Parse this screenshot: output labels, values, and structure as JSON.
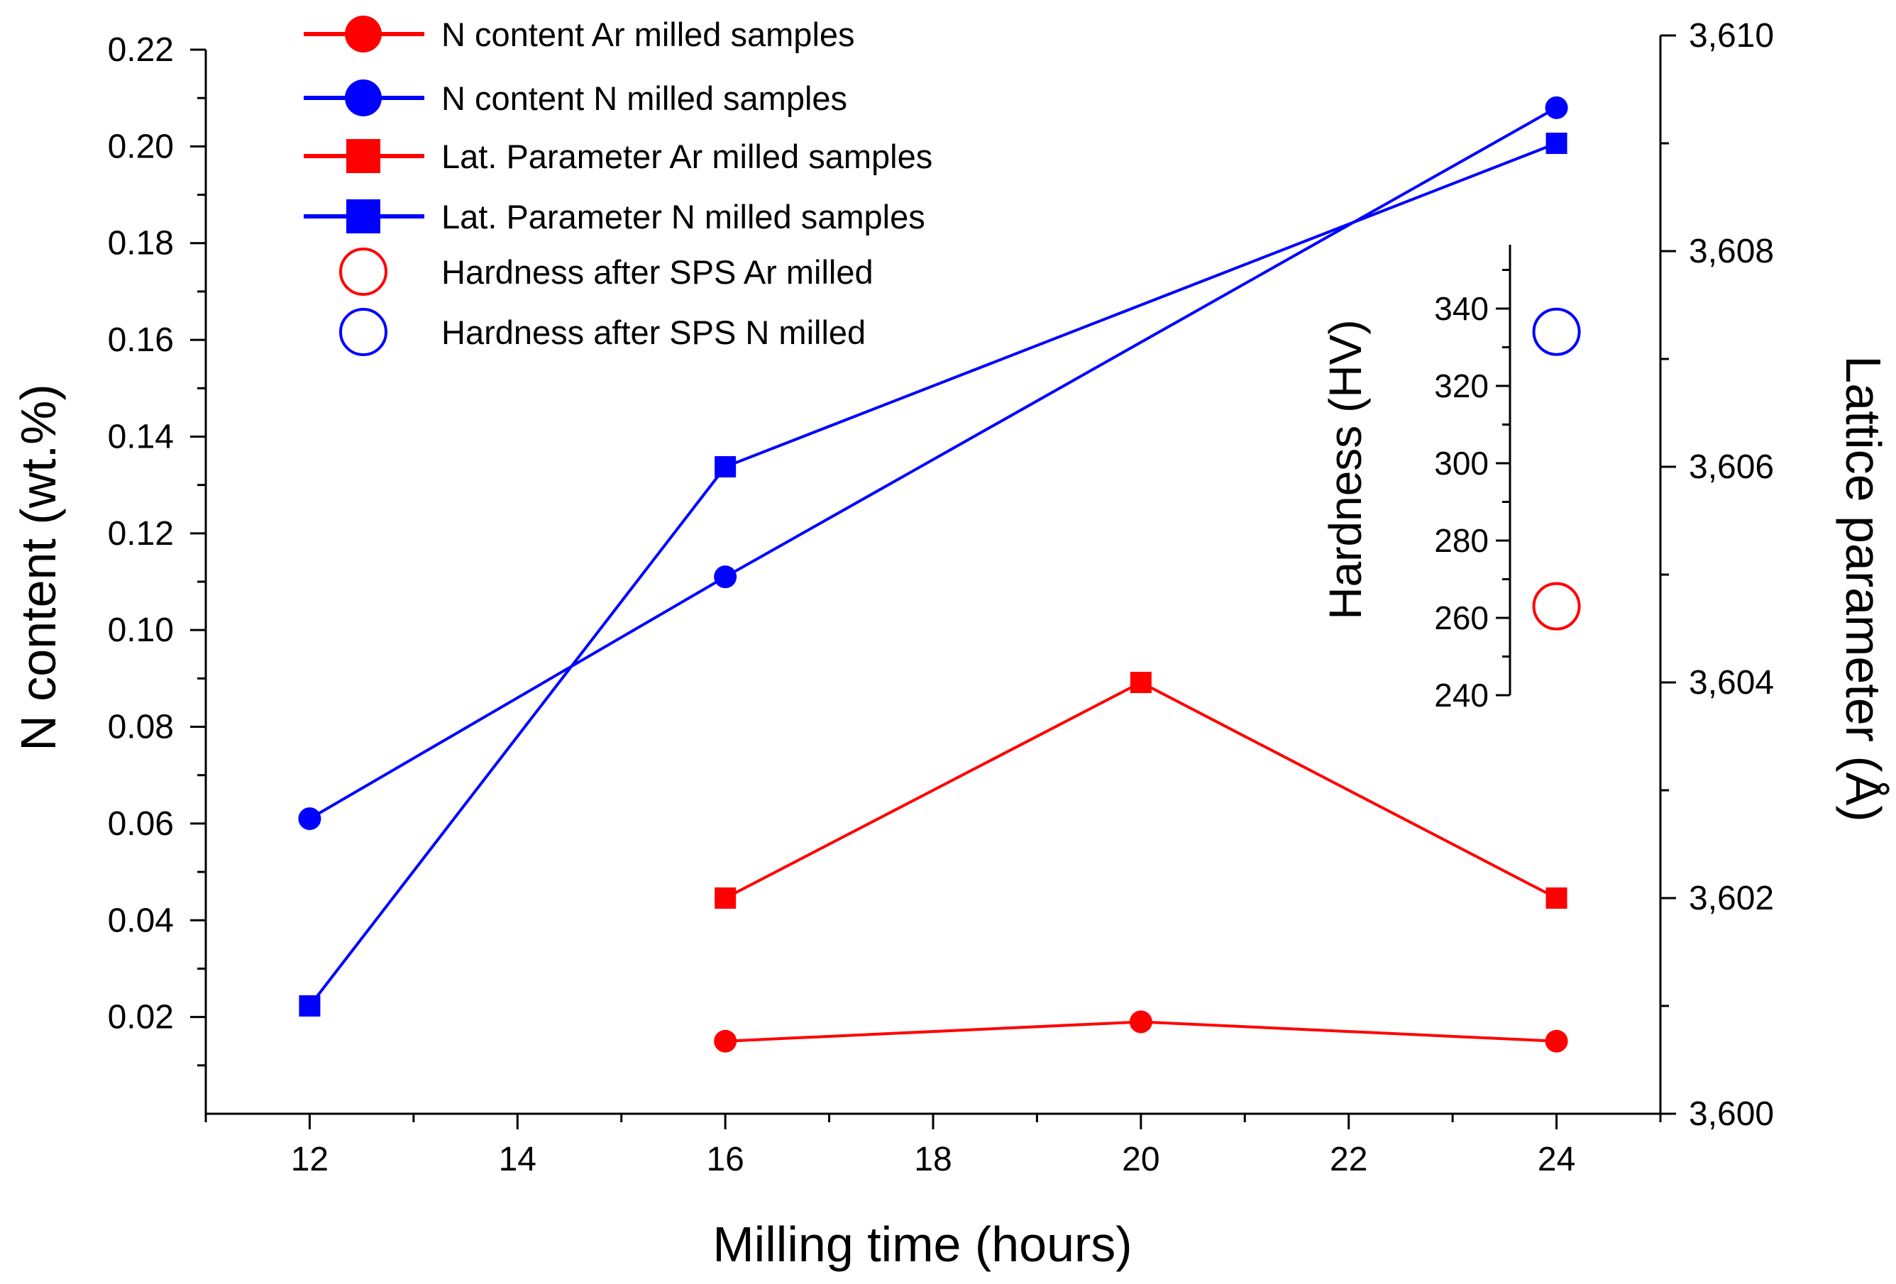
{
  "chart_data": {
    "type": "line",
    "xlabel": "Milling time (hours)",
    "ylabel": "N content (wt.%)",
    "y2label": "Lattice parameter (Å)",
    "xlim": [
      11,
      25
    ],
    "ylim": [
      0,
      0.22
    ],
    "y2lim": [
      3.6,
      3.61
    ],
    "x_ticks": [
      12,
      14,
      16,
      18,
      20,
      22,
      24
    ],
    "y_ticks": [
      0.02,
      0.04,
      0.06,
      0.08,
      0.1,
      0.12,
      0.14,
      0.16,
      0.18,
      0.2,
      0.22
    ],
    "y_tick_labels": [
      "0.02",
      "0.04",
      "0.06",
      "0.08",
      "0.10",
      "0.12",
      "0.14",
      "0.16",
      "0.18",
      "0.20",
      "0.22"
    ],
    "y2_ticks": [
      3.6,
      3.602,
      3.604,
      3.606,
      3.608,
      3.61
    ],
    "y2_tick_labels": [
      "3,600",
      "3,602",
      "3,604",
      "3,606",
      "3,608",
      "3,610"
    ],
    "grid": false,
    "legend_position": "top-left",
    "series": [
      {
        "name": "N content Ar milled samples",
        "axis": "left",
        "marker": "circle",
        "color": "#ff0000",
        "x": [
          16,
          20,
          24
        ],
        "values": [
          0.015,
          0.019,
          0.015
        ]
      },
      {
        "name": "N content N milled samples",
        "axis": "left",
        "marker": "circle",
        "color": "#0000ff",
        "x": [
          12,
          16,
          24
        ],
        "values": [
          0.061,
          0.111,
          0.208
        ]
      },
      {
        "name": "Lat. Parameter Ar milled samples",
        "axis": "right",
        "marker": "square",
        "color": "#ff0000",
        "x": [
          16,
          20,
          24
        ],
        "values": [
          3.602,
          3.604,
          3.602
        ]
      },
      {
        "name": "Lat. Parameter N milled samples",
        "axis": "right",
        "marker": "square",
        "color": "#0000ff",
        "x": [
          12,
          16,
          24
        ],
        "values": [
          3.601,
          3.606,
          3.609
        ]
      },
      {
        "name": "Hardness after SPS Ar milled",
        "axis": "inset",
        "marker": "open-circle",
        "color": "#ff0000",
        "x": [
          24
        ],
        "values": [
          263
        ]
      },
      {
        "name": "Hardness after SPS N milled",
        "axis": "inset",
        "marker": "open-circle",
        "color": "#0000ff",
        "x": [
          24
        ],
        "values": [
          334
        ]
      }
    ],
    "inset": {
      "ylabel": "Hardness (HV)",
      "ylim": [
        240,
        355
      ],
      "y_ticks": [
        240,
        260,
        280,
        300,
        320,
        340
      ]
    }
  }
}
